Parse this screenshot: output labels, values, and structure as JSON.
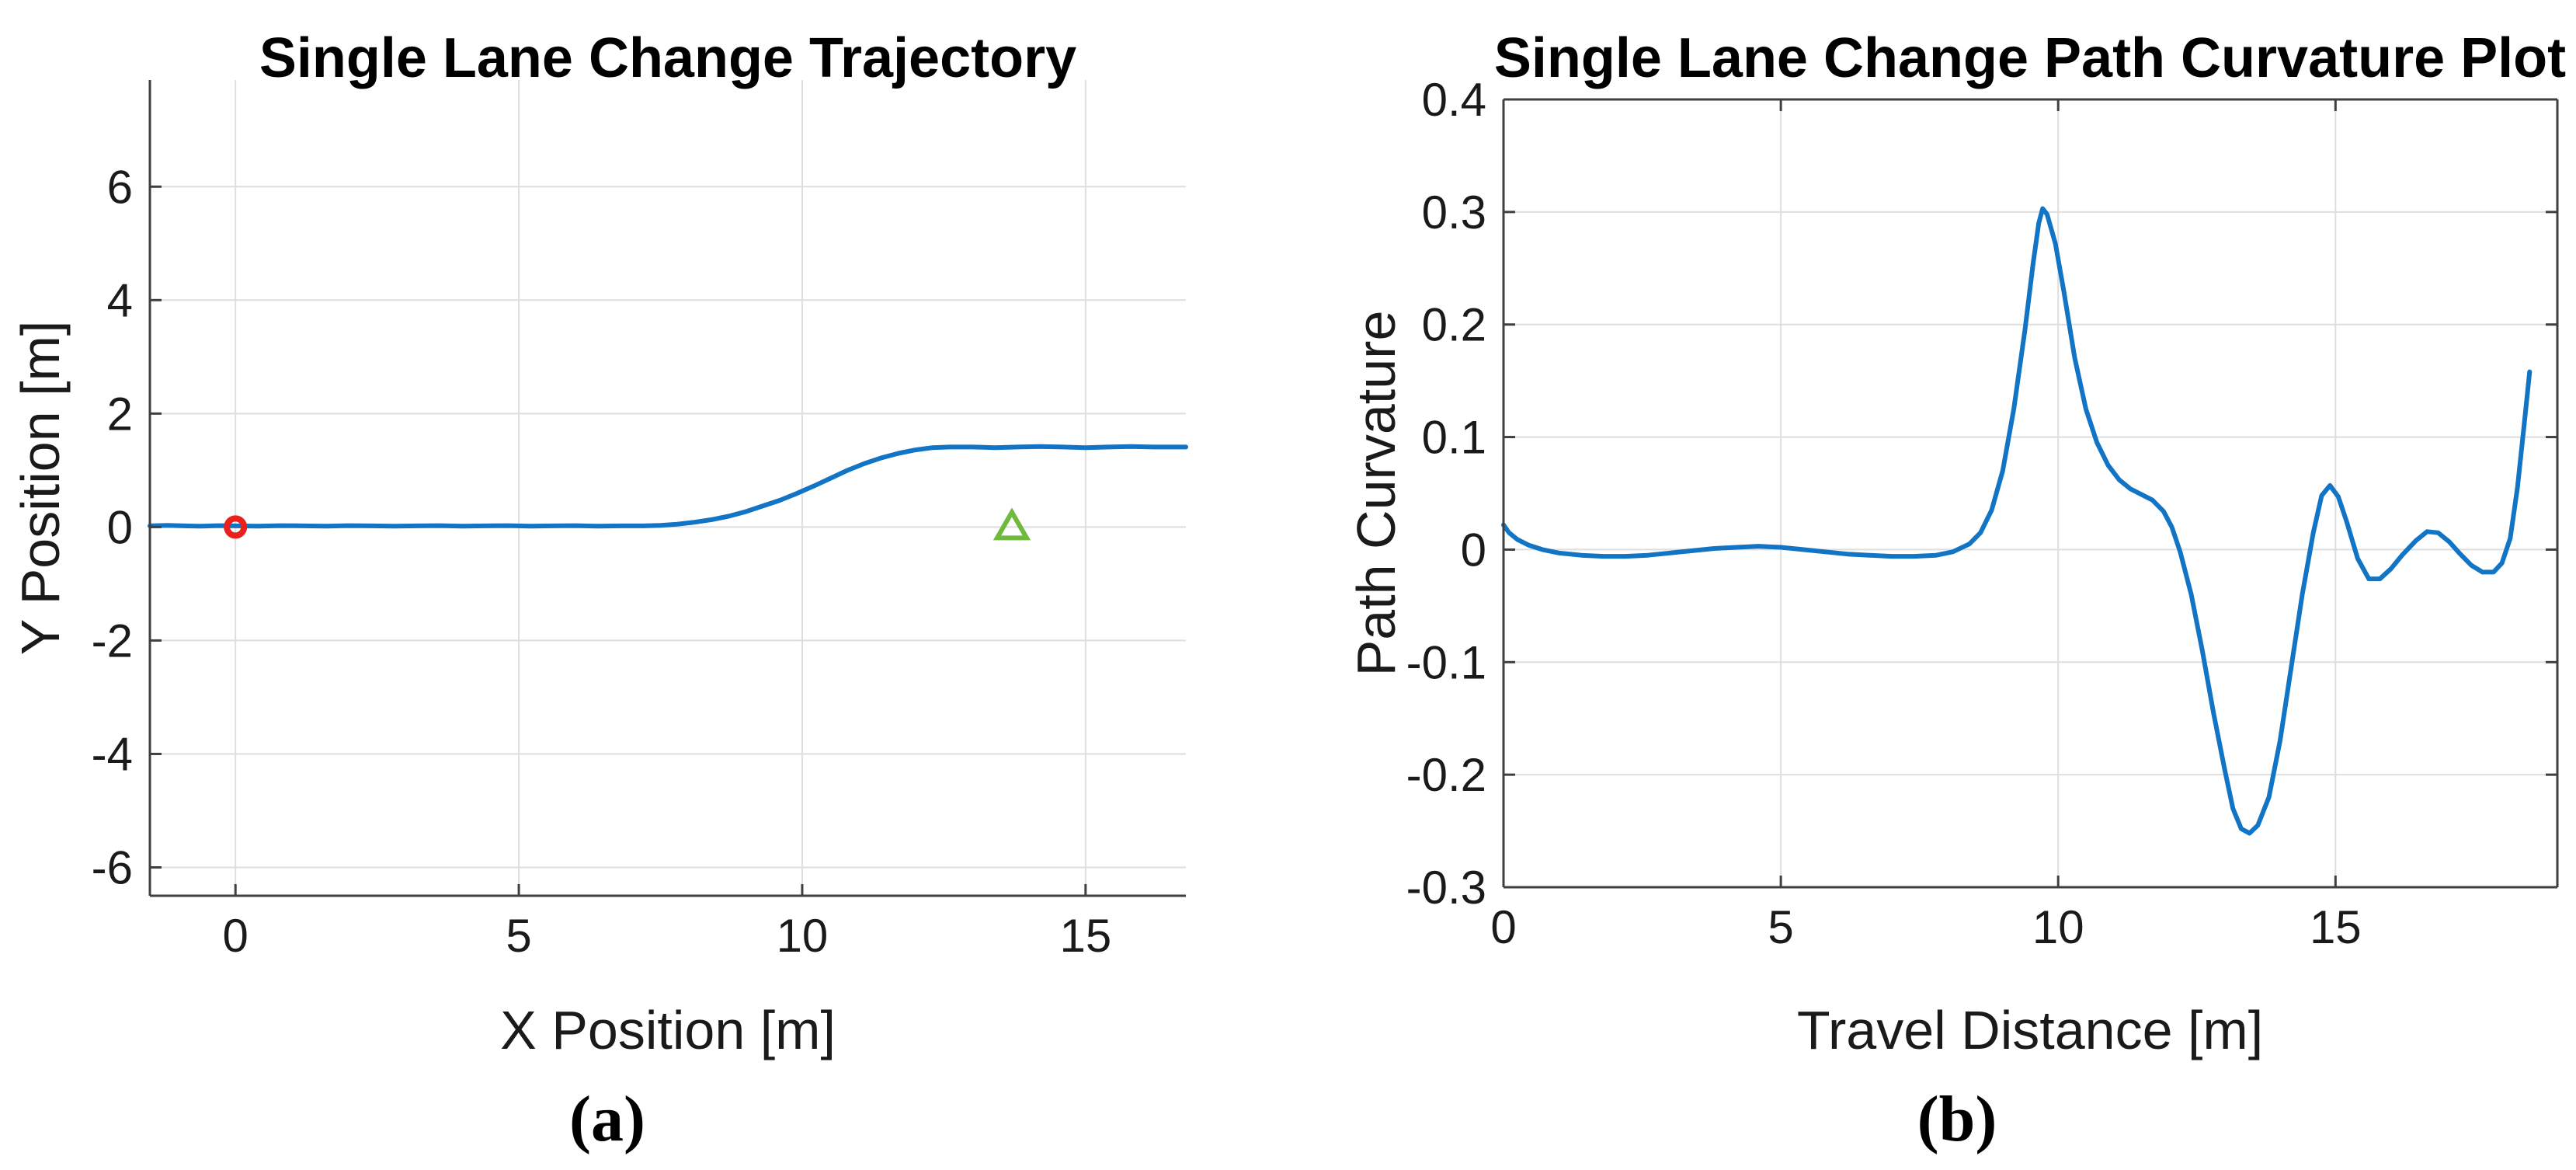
{
  "colors": {
    "background": "#ffffff",
    "axis": "#3f3f3f",
    "grid": "#dedede",
    "text": "#1a1a1a",
    "line_blue": "#1274c5",
    "marker_red": "#e8211d",
    "marker_green": "#6eb93e"
  },
  "chart_data": [
    {
      "type": "line",
      "panel": "a",
      "caption": "(a)",
      "title": "Single Lane Change Trajectory",
      "xlabel": "X Position [m]",
      "ylabel": "Y Position [m]",
      "xlim": [
        -1.51,
        16.77
      ],
      "ylim": [
        -6.5,
        7.88
      ],
      "xticks": [
        0,
        5,
        10,
        15
      ],
      "yticks": [
        -6,
        -4,
        -2,
        0,
        2,
        4,
        6
      ],
      "grid": true,
      "box": false,
      "legend": "none",
      "series": [
        {
          "name": "vehicle-trajectory",
          "color": "#1274c5",
          "width": 6,
          "points": [
            [
              -1.51,
              0.02
            ],
            [
              -1.2,
              0.03
            ],
            [
              -0.9,
              0.02
            ],
            [
              -0.6,
              0.015
            ],
            [
              -0.3,
              0.025
            ],
            [
              0,
              0.02
            ],
            [
              0.4,
              0.015
            ],
            [
              0.8,
              0.025
            ],
            [
              1.2,
              0.02
            ],
            [
              1.6,
              0.015
            ],
            [
              2.0,
              0.025
            ],
            [
              2.4,
              0.02
            ],
            [
              2.8,
              0.015
            ],
            [
              3.2,
              0.02
            ],
            [
              3.6,
              0.025
            ],
            [
              4.0,
              0.015
            ],
            [
              4.4,
              0.02
            ],
            [
              4.8,
              0.025
            ],
            [
              5.2,
              0.015
            ],
            [
              5.6,
              0.02
            ],
            [
              6.0,
              0.025
            ],
            [
              6.4,
              0.015
            ],
            [
              6.8,
              0.02
            ],
            [
              7.2,
              0.02
            ],
            [
              7.5,
              0.03
            ],
            [
              7.8,
              0.05
            ],
            [
              8.1,
              0.085
            ],
            [
              8.4,
              0.13
            ],
            [
              8.7,
              0.19
            ],
            [
              9.0,
              0.27
            ],
            [
              9.3,
              0.37
            ],
            [
              9.6,
              0.47
            ],
            [
              9.9,
              0.59
            ],
            [
              10.2,
              0.72
            ],
            [
              10.5,
              0.86
            ],
            [
              10.8,
              1.0
            ],
            [
              11.1,
              1.12
            ],
            [
              11.4,
              1.22
            ],
            [
              11.7,
              1.3
            ],
            [
              12.0,
              1.36
            ],
            [
              12.3,
              1.4
            ],
            [
              12.6,
              1.41
            ],
            [
              13.0,
              1.41
            ],
            [
              13.4,
              1.4
            ],
            [
              13.8,
              1.41
            ],
            [
              14.2,
              1.42
            ],
            [
              14.6,
              1.41
            ],
            [
              15.0,
              1.4
            ],
            [
              15.4,
              1.41
            ],
            [
              15.8,
              1.42
            ],
            [
              16.2,
              1.41
            ],
            [
              16.5,
              1.41
            ],
            [
              16.77,
              1.41
            ]
          ]
        }
      ],
      "markers": [
        {
          "name": "start-marker",
          "shape": "circle",
          "x": 0,
          "y": 0,
          "color": "#e8211d"
        },
        {
          "name": "end-marker",
          "shape": "triangle-up",
          "x": 13.7,
          "y": 0,
          "color": "#6eb93e"
        }
      ]
    },
    {
      "type": "line",
      "panel": "b",
      "caption": "(b)",
      "title": "Single Lane Change Path Curvature Plot",
      "xlabel": "Travel Distance [m]",
      "ylabel": "Path Curvature",
      "xlim": [
        0,
        19.0
      ],
      "ylim": [
        -0.3,
        0.4
      ],
      "xticks": [
        0,
        5,
        10,
        15
      ],
      "yticks": [
        -0.3,
        -0.2,
        -0.1,
        0,
        0.1,
        0.2,
        0.3,
        0.4
      ],
      "grid": true,
      "box": true,
      "legend": "none",
      "series": [
        {
          "name": "path-curvature",
          "color": "#1274c5",
          "width": 6,
          "points": [
            [
              0,
              0.022
            ],
            [
              0.1,
              0.015
            ],
            [
              0.25,
              0.009
            ],
            [
              0.45,
              0.004
            ],
            [
              0.7,
              0.0
            ],
            [
              1.0,
              -0.003
            ],
            [
              1.4,
              -0.005
            ],
            [
              1.8,
              -0.006
            ],
            [
              2.2,
              -0.006
            ],
            [
              2.6,
              -0.005
            ],
            [
              3.0,
              -0.003
            ],
            [
              3.4,
              -0.001
            ],
            [
              3.8,
              0.001
            ],
            [
              4.2,
              0.002
            ],
            [
              4.6,
              0.003
            ],
            [
              5.0,
              0.002
            ],
            [
              5.4,
              0.0
            ],
            [
              5.8,
              -0.002
            ],
            [
              6.2,
              -0.004
            ],
            [
              6.6,
              -0.005
            ],
            [
              7.0,
              -0.006
            ],
            [
              7.4,
              -0.006
            ],
            [
              7.8,
              -0.005
            ],
            [
              8.1,
              -0.002
            ],
            [
              8.4,
              0.005
            ],
            [
              8.6,
              0.015
            ],
            [
              8.8,
              0.035
            ],
            [
              9.0,
              0.07
            ],
            [
              9.2,
              0.125
            ],
            [
              9.4,
              0.195
            ],
            [
              9.55,
              0.255
            ],
            [
              9.65,
              0.29
            ],
            [
              9.72,
              0.303
            ],
            [
              9.8,
              0.298
            ],
            [
              9.95,
              0.272
            ],
            [
              10.1,
              0.23
            ],
            [
              10.3,
              0.17
            ],
            [
              10.5,
              0.125
            ],
            [
              10.7,
              0.095
            ],
            [
              10.9,
              0.075
            ],
            [
              11.1,
              0.062
            ],
            [
              11.3,
              0.054
            ],
            [
              11.5,
              0.049
            ],
            [
              11.7,
              0.044
            ],
            [
              11.9,
              0.034
            ],
            [
              12.05,
              0.02
            ],
            [
              12.2,
              -0.002
            ],
            [
              12.4,
              -0.04
            ],
            [
              12.6,
              -0.09
            ],
            [
              12.8,
              -0.145
            ],
            [
              13.0,
              -0.195
            ],
            [
              13.15,
              -0.23
            ],
            [
              13.3,
              -0.248
            ],
            [
              13.45,
              -0.252
            ],
            [
              13.6,
              -0.245
            ],
            [
              13.8,
              -0.22
            ],
            [
              14.0,
              -0.17
            ],
            [
              14.2,
              -0.105
            ],
            [
              14.4,
              -0.04
            ],
            [
              14.6,
              0.015
            ],
            [
              14.75,
              0.048
            ],
            [
              14.9,
              0.057
            ],
            [
              15.05,
              0.047
            ],
            [
              15.2,
              0.025
            ],
            [
              15.4,
              -0.008
            ],
            [
              15.6,
              -0.026
            ],
            [
              15.8,
              -0.026
            ],
            [
              16.0,
              -0.017
            ],
            [
              16.2,
              -0.005
            ],
            [
              16.45,
              0.008
            ],
            [
              16.65,
              0.016
            ],
            [
              16.85,
              0.015
            ],
            [
              17.05,
              0.007
            ],
            [
              17.25,
              -0.004
            ],
            [
              17.45,
              -0.014
            ],
            [
              17.65,
              -0.02
            ],
            [
              17.85,
              -0.02
            ],
            [
              18.0,
              -0.012
            ],
            [
              18.15,
              0.01
            ],
            [
              18.28,
              0.055
            ],
            [
              18.4,
              0.11
            ],
            [
              18.5,
              0.158
            ]
          ]
        }
      ],
      "markers": []
    }
  ]
}
